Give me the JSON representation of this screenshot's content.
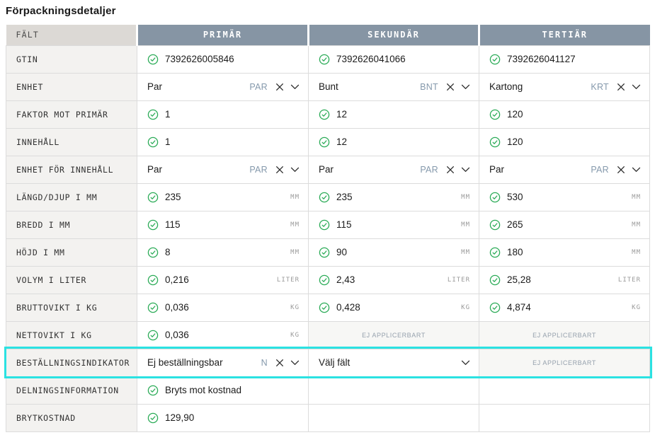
{
  "page": {
    "title": "Förpackningsdetaljer"
  },
  "colors": {
    "column_header_bg": "#8695a4",
    "field_header_bg": "#dcd9d5",
    "label_cell_bg": "#f3f2f0",
    "na_cell_bg": "#f7f7f5",
    "border": "#dcdcdc",
    "verified_green": "#2bab57",
    "code_blue_gray": "#8599ac",
    "highlight_cyan": "#2be2e2"
  },
  "icons": {
    "verified": "check-circle-icon",
    "clear": "x-icon",
    "open": "chevron-down-icon"
  },
  "table": {
    "columns": [
      "FÄLT",
      "PRIMÄR",
      "SEKUNDÄR",
      "TERTIÄR"
    ],
    "rows": [
      {
        "label": "GTIN",
        "cells": [
          {
            "type": "verified",
            "value": "7392626005846"
          },
          {
            "type": "verified",
            "value": "7392626041066"
          },
          {
            "type": "verified",
            "value": "7392626041127"
          }
        ]
      },
      {
        "label": "ENHET",
        "cells": [
          {
            "type": "dropdown",
            "value": "Par",
            "code": "PAR"
          },
          {
            "type": "dropdown",
            "value": "Bunt",
            "code": "BNT"
          },
          {
            "type": "dropdown",
            "value": "Kartong",
            "code": "KRT"
          }
        ]
      },
      {
        "label": "FAKTOR MOT PRIMÄR",
        "cells": [
          {
            "type": "verified",
            "value": "1"
          },
          {
            "type": "verified",
            "value": "12"
          },
          {
            "type": "verified",
            "value": "120"
          }
        ]
      },
      {
        "label": "INNEHÅLL",
        "cells": [
          {
            "type": "verified",
            "value": "1"
          },
          {
            "type": "verified",
            "value": "12"
          },
          {
            "type": "verified",
            "value": "120"
          }
        ]
      },
      {
        "label": "ENHET FÖR INNEHÅLL",
        "cells": [
          {
            "type": "dropdown",
            "value": "Par",
            "code": "PAR"
          },
          {
            "type": "dropdown",
            "value": "Par",
            "code": "PAR"
          },
          {
            "type": "dropdown",
            "value": "Par",
            "code": "PAR"
          }
        ]
      },
      {
        "label": "LÄNGD/DJUP I MM",
        "cells": [
          {
            "type": "verified",
            "value": "235",
            "unit": "MM"
          },
          {
            "type": "verified",
            "value": "235",
            "unit": "MM"
          },
          {
            "type": "verified",
            "value": "530",
            "unit": "MM"
          }
        ]
      },
      {
        "label": "BREDD I MM",
        "cells": [
          {
            "type": "verified",
            "value": "115",
            "unit": "MM"
          },
          {
            "type": "verified",
            "value": "115",
            "unit": "MM"
          },
          {
            "type": "verified",
            "value": "265",
            "unit": "MM"
          }
        ]
      },
      {
        "label": "HÖJD I MM",
        "cells": [
          {
            "type": "verified",
            "value": "8",
            "unit": "MM"
          },
          {
            "type": "verified",
            "value": "90",
            "unit": "MM"
          },
          {
            "type": "verified",
            "value": "180",
            "unit": "MM"
          }
        ]
      },
      {
        "label": "VOLYM I LITER",
        "cells": [
          {
            "type": "verified",
            "value": "0,216",
            "unit": "LITER"
          },
          {
            "type": "verified",
            "value": "2,43",
            "unit": "LITER"
          },
          {
            "type": "verified",
            "value": "25,28",
            "unit": "LITER"
          }
        ]
      },
      {
        "label": "BRUTTOVIKT I KG",
        "cells": [
          {
            "type": "verified",
            "value": "0,036",
            "unit": "KG"
          },
          {
            "type": "verified",
            "value": "0,428",
            "unit": "KG"
          },
          {
            "type": "verified",
            "value": "4,874",
            "unit": "KG"
          }
        ]
      },
      {
        "label": "NETTOVIKT I KG",
        "cells": [
          {
            "type": "verified",
            "value": "0,036",
            "unit": "KG"
          },
          {
            "type": "na",
            "value": "EJ APPLICERBART"
          },
          {
            "type": "na",
            "value": "EJ APPLICERBART"
          }
        ]
      },
      {
        "label": "BESTÄLLNINGSINDIKATOR",
        "highlighted": true,
        "cells": [
          {
            "type": "dropdown",
            "value": "Ej beställningsbar",
            "code": "N"
          },
          {
            "type": "dropdown_placeholder",
            "value": "Välj fält"
          },
          {
            "type": "na",
            "value": "EJ APPLICERBART"
          }
        ]
      },
      {
        "label": "DELNINGSINFORMATION",
        "cells": [
          {
            "type": "verified",
            "value": "Bryts mot kostnad"
          },
          {
            "type": "empty"
          },
          {
            "type": "empty"
          }
        ]
      },
      {
        "label": "BRYTKOSTNAD",
        "cells": [
          {
            "type": "verified",
            "value": "129,90"
          },
          {
            "type": "empty"
          },
          {
            "type": "empty"
          }
        ]
      }
    ]
  }
}
